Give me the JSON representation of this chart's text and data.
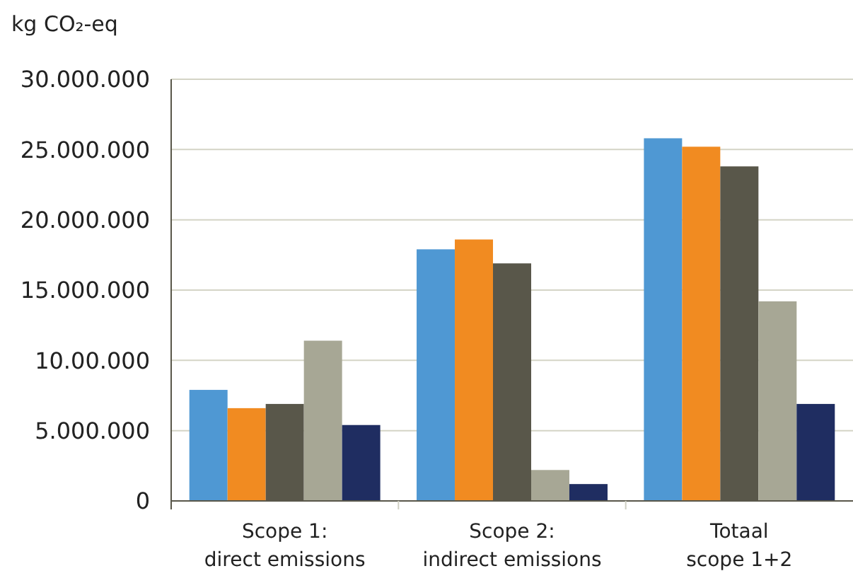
{
  "chart_data": {
    "type": "bar",
    "ylabel": "kg CO₂-eq",
    "categories": [
      "Scope 1:\ndirect emissions",
      "Scope 2:\nindirect emissions",
      "Totaal\nscope 1+2"
    ],
    "series": [
      {
        "color": "#4f98d3",
        "values": [
          7900000,
          17900000,
          25800000
        ]
      },
      {
        "color": "#f18b21",
        "values": [
          6600000,
          18600000,
          25200000
        ]
      },
      {
        "color": "#59574a",
        "values": [
          6900000,
          16900000,
          23800000
        ]
      },
      {
        "color": "#a7a795",
        "values": [
          11400000,
          2200000,
          14200000
        ]
      },
      {
        "color": "#1f2d61",
        "values": [
          5400000,
          1200000,
          6900000
        ]
      }
    ],
    "ylim": [
      0,
      30000000
    ],
    "yticks": [
      0,
      {
        "value": 5000000,
        "label": "5.000.000"
      },
      {
        "value": 10000000,
        "label": "10.00.000"
      },
      {
        "value": 15000000,
        "label": "15.000.000"
      },
      {
        "value": 20000000,
        "label": "20.000.000"
      },
      {
        "value": 25000000,
        "label": "25.000.000"
      },
      {
        "value": 30000000,
        "label": "30.000.000"
      }
    ],
    "grid": "y"
  }
}
